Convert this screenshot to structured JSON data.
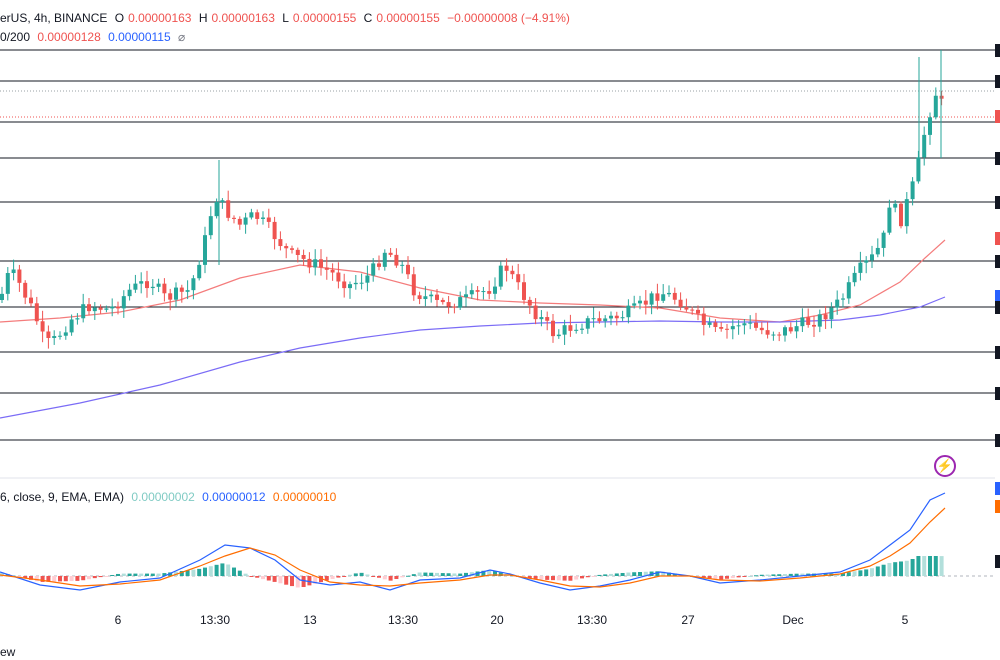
{
  "header": {
    "symbol_fragment": "erUS, 4h, BINANCE",
    "open_label": "O",
    "open": "0.00000163",
    "high_label": "H",
    "high": "0.00000163",
    "low_label": "L",
    "low": "0.00000155",
    "close_label": "C",
    "close": "0.00000155",
    "change": "−0.00000008 (−4.91%)"
  },
  "ma_legend": {
    "label": "0/200",
    "ma50": "0.00000128",
    "ma200": "0.00000115",
    "visibility_symbol": "⌀"
  },
  "macd_legend": {
    "label": "6, close, 9, EMA, EMA)",
    "histogram": "0.00000002",
    "macd": "0.00000012",
    "signal": "0.00000010"
  },
  "x_axis_labels": [
    "6",
    "13:30",
    "13",
    "13:30",
    "20",
    "13:30",
    "27",
    "Dec",
    "5"
  ],
  "footer_fragment": "ew",
  "colors": {
    "up": "#26a69a",
    "down": "#ef5350",
    "ma_fast": "#f47c7c",
    "ma_slow": "#7b6cf6",
    "macd_line": "#2962ff",
    "signal_line": "#ff6d00",
    "hist_up_strong": "#26a69a",
    "hist_up_weak": "#b2dfdb",
    "hist_down_strong": "#ef5350",
    "hist_down_weak": "#ffcdd2"
  },
  "icons": {
    "lightning": "lightning-icon"
  }
}
